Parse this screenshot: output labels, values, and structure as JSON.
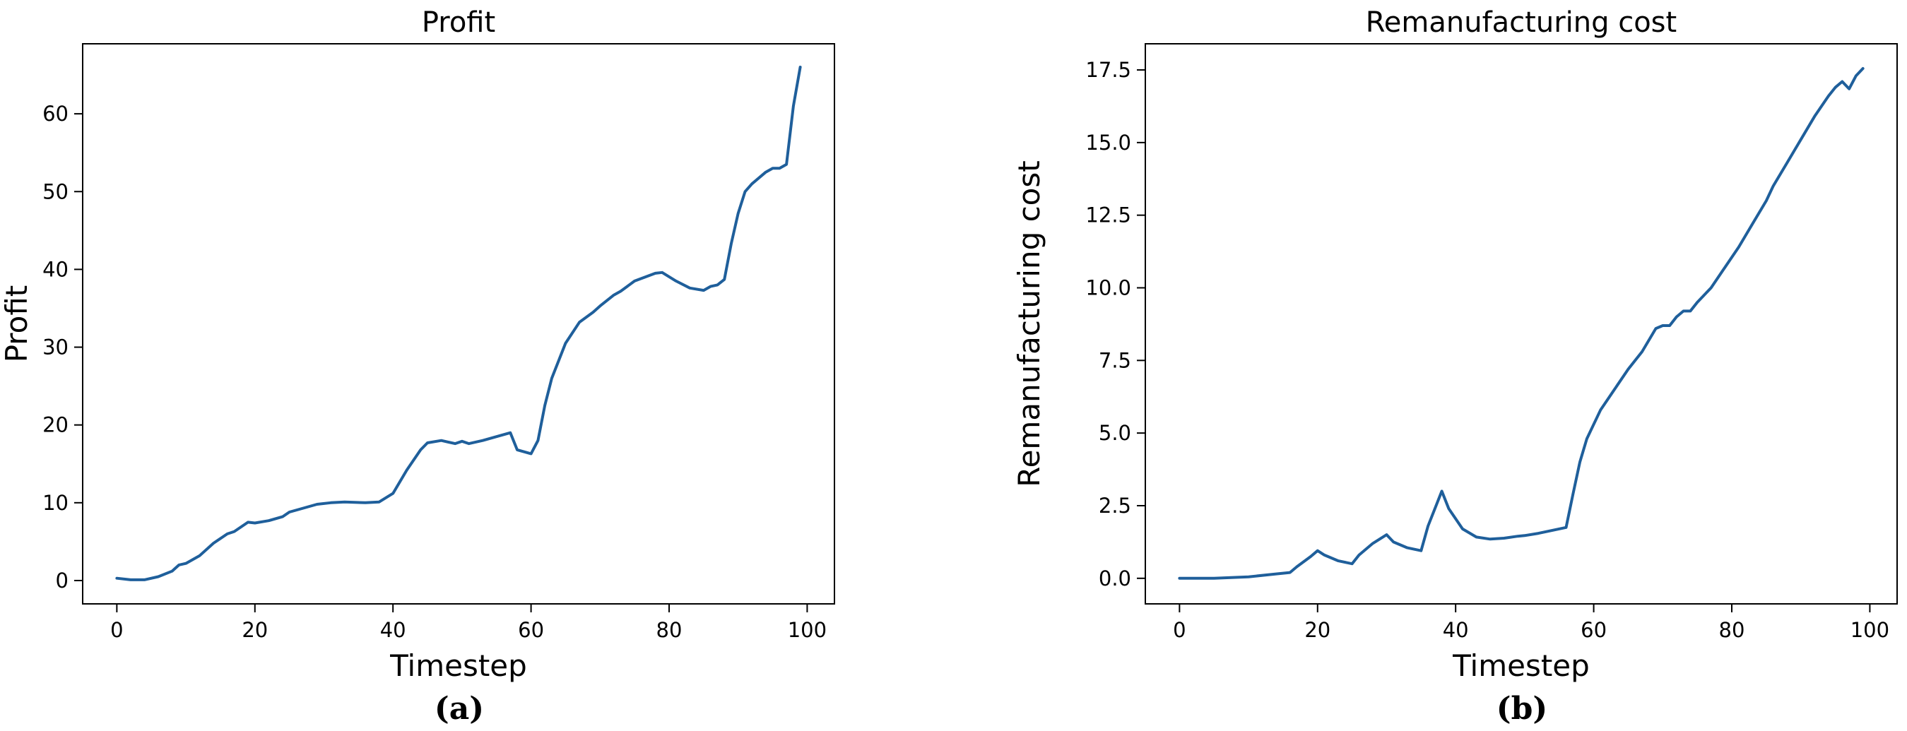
{
  "chart_data": [
    {
      "type": "line",
      "title": "Profit",
      "xlabel": "Timestep",
      "ylabel": "Profit",
      "xlim": [
        -4.95,
        103.95
      ],
      "ylim": [
        -3.0,
        69.0
      ],
      "xticks": [
        0,
        20,
        40,
        60,
        80,
        100
      ],
      "yticks": [
        0,
        10,
        20,
        30,
        40,
        50,
        60
      ],
      "xtick_labels": [
        "0",
        "20",
        "40",
        "60",
        "80",
        "100"
      ],
      "ytick_labels": [
        "0",
        "10",
        "20",
        "30",
        "40",
        "50",
        "60"
      ],
      "grid": false,
      "caption": "(a)",
      "series": [
        {
          "color": "#1f5f9b",
          "x": [
            0,
            2,
            4,
            6,
            8,
            9,
            10,
            12,
            14,
            16,
            17,
            19,
            20,
            22,
            24,
            25,
            27,
            29,
            31,
            33,
            36,
            38,
            40,
            42,
            44,
            45,
            47,
            49,
            50,
            51,
            53,
            55,
            57,
            58,
            60,
            61,
            62,
            63,
            65,
            67,
            69,
            70,
            72,
            73,
            75,
            78,
            79,
            81,
            83,
            85,
            86,
            87,
            88,
            89,
            90,
            91,
            92,
            94,
            95,
            96,
            97,
            98,
            99
          ],
          "values": [
            0.3,
            0.1,
            0.1,
            0.5,
            1.2,
            2.0,
            2.2,
            3.2,
            4.8,
            6.0,
            6.3,
            7.5,
            7.4,
            7.7,
            8.2,
            8.8,
            9.3,
            9.8,
            10.0,
            10.1,
            10.0,
            10.1,
            11.2,
            14.2,
            16.8,
            17.7,
            18.0,
            17.6,
            17.9,
            17.6,
            18.0,
            18.5,
            19.0,
            16.8,
            16.3,
            18.0,
            22.5,
            26.0,
            30.5,
            33.2,
            34.5,
            35.3,
            36.7,
            37.2,
            38.5,
            39.5,
            39.6,
            38.5,
            37.6,
            37.3,
            37.8,
            38.0,
            38.7,
            43.3,
            47.2,
            50.0,
            51.0,
            52.5,
            53.0,
            53.0,
            53.5,
            61.0,
            66.0
          ]
        }
      ]
    },
    {
      "type": "line",
      "title": "Remanufacturing cost",
      "xlabel": "Timestep",
      "ylabel": "Remanufacturing cost",
      "xlim": [
        -4.95,
        103.95
      ],
      "ylim": [
        -0.88,
        18.4
      ],
      "xticks": [
        0,
        20,
        40,
        60,
        80,
        100
      ],
      "yticks": [
        0.0,
        2.5,
        5.0,
        7.5,
        10.0,
        12.5,
        15.0,
        17.5
      ],
      "xtick_labels": [
        "0",
        "20",
        "40",
        "60",
        "80",
        "100"
      ],
      "ytick_labels": [
        "0.0",
        "2.5",
        "5.0",
        "7.5",
        "10.0",
        "12.5",
        "15.0",
        "17.5"
      ],
      "grid": false,
      "caption": "(b)",
      "series": [
        {
          "color": "#1f5f9b",
          "x": [
            0,
            5,
            10,
            14,
            16,
            17,
            19,
            20,
            21,
            23,
            25,
            26,
            28,
            30,
            31,
            33,
            35,
            36,
            38,
            39,
            41,
            43,
            45,
            47,
            49,
            50,
            52,
            54,
            56,
            57,
            58,
            59,
            61,
            63,
            65,
            67,
            69,
            70,
            71,
            72,
            73,
            74,
            75,
            77,
            79,
            81,
            83,
            85,
            86,
            88,
            90,
            92,
            94,
            95,
            96,
            97,
            98,
            99
          ],
          "values": [
            0.0,
            0.0,
            0.05,
            0.15,
            0.2,
            0.4,
            0.75,
            0.95,
            0.8,
            0.6,
            0.5,
            0.8,
            1.2,
            1.5,
            1.25,
            1.05,
            0.95,
            1.8,
            3.0,
            2.4,
            1.7,
            1.42,
            1.35,
            1.38,
            1.45,
            1.47,
            1.55,
            1.65,
            1.75,
            2.9,
            4.0,
            4.8,
            5.8,
            6.5,
            7.2,
            7.8,
            8.6,
            8.7,
            8.7,
            9.0,
            9.2,
            9.2,
            9.5,
            10.0,
            10.7,
            11.4,
            12.2,
            13.0,
            13.5,
            14.3,
            15.1,
            15.9,
            16.6,
            16.9,
            17.1,
            16.85,
            17.3,
            17.55
          ]
        }
      ]
    }
  ]
}
